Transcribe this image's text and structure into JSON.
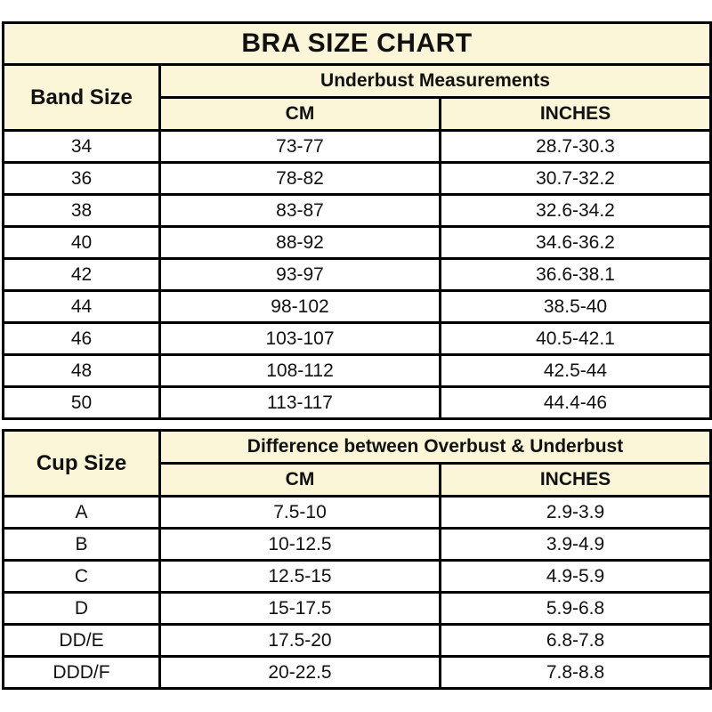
{
  "colors": {
    "page_bg": "#FFFFFF",
    "header_bg": "#FBF6D8",
    "row_bg": "#FFFFFF",
    "border": "#000000",
    "text": "#111111"
  },
  "title": "BRA SIZE CHART",
  "band_table": {
    "row_header": "Band Size",
    "group_header": "Underbust Measurements",
    "col_cm": "CM",
    "col_inches": "INCHES",
    "rows": [
      {
        "size": "34",
        "cm": "73-77",
        "inches": "28.7-30.3"
      },
      {
        "size": "36",
        "cm": "78-82",
        "inches": "30.7-32.2"
      },
      {
        "size": "38",
        "cm": "83-87",
        "inches": "32.6-34.2"
      },
      {
        "size": "40",
        "cm": "88-92",
        "inches": "34.6-36.2"
      },
      {
        "size": "42",
        "cm": "93-97",
        "inches": "36.6-38.1"
      },
      {
        "size": "44",
        "cm": "98-102",
        "inches": "38.5-40"
      },
      {
        "size": "46",
        "cm": "103-107",
        "inches": "40.5-42.1"
      },
      {
        "size": "48",
        "cm": "108-112",
        "inches": "42.5-44"
      },
      {
        "size": "50",
        "cm": "113-117",
        "inches": "44.4-46"
      }
    ]
  },
  "cup_table": {
    "row_header": "Cup Size",
    "group_header": "Difference between Overbust & Underbust",
    "col_cm": "CM",
    "col_inches": "INCHES",
    "rows": [
      {
        "size": "A",
        "cm": "7.5-10",
        "inches": "2.9-3.9"
      },
      {
        "size": "B",
        "cm": "10-12.5",
        "inches": "3.9-4.9"
      },
      {
        "size": "C",
        "cm": "12.5-15",
        "inches": "4.9-5.9"
      },
      {
        "size": "D",
        "cm": "15-17.5",
        "inches": "5.9-6.8"
      },
      {
        "size": "DD/E",
        "cm": "17.5-20",
        "inches": "6.8-7.8"
      },
      {
        "size": "DDD/F",
        "cm": "20-22.5",
        "inches": "7.8-8.8"
      }
    ]
  },
  "chart_data": [
    {
      "type": "table",
      "title": "BRA SIZE CHART",
      "group_header": "Underbust Measurements",
      "columns": [
        "Band Size",
        "CM",
        "INCHES"
      ],
      "rows": [
        [
          "34",
          "73-77",
          "28.7-30.3"
        ],
        [
          "36",
          "78-82",
          "30.7-32.2"
        ],
        [
          "38",
          "83-87",
          "32.6-34.2"
        ],
        [
          "40",
          "88-92",
          "34.6-36.2"
        ],
        [
          "42",
          "93-97",
          "36.6-38.1"
        ],
        [
          "44",
          "98-102",
          "38.5-40"
        ],
        [
          "46",
          "103-107",
          "40.5-42.1"
        ],
        [
          "48",
          "108-112",
          "42.5-44"
        ],
        [
          "50",
          "113-117",
          "44.4-46"
        ]
      ]
    },
    {
      "type": "table",
      "group_header": "Difference between Overbust & Underbust",
      "columns": [
        "Cup Size",
        "CM",
        "INCHES"
      ],
      "rows": [
        [
          "A",
          "7.5-10",
          "2.9-3.9"
        ],
        [
          "B",
          "10-12.5",
          "3.9-4.9"
        ],
        [
          "C",
          "12.5-15",
          "4.9-5.9"
        ],
        [
          "D",
          "15-17.5",
          "5.9-6.8"
        ],
        [
          "DD/E",
          "17.5-20",
          "6.8-7.8"
        ],
        [
          "DDD/F",
          "20-22.5",
          "7.8-8.8"
        ]
      ]
    }
  ]
}
